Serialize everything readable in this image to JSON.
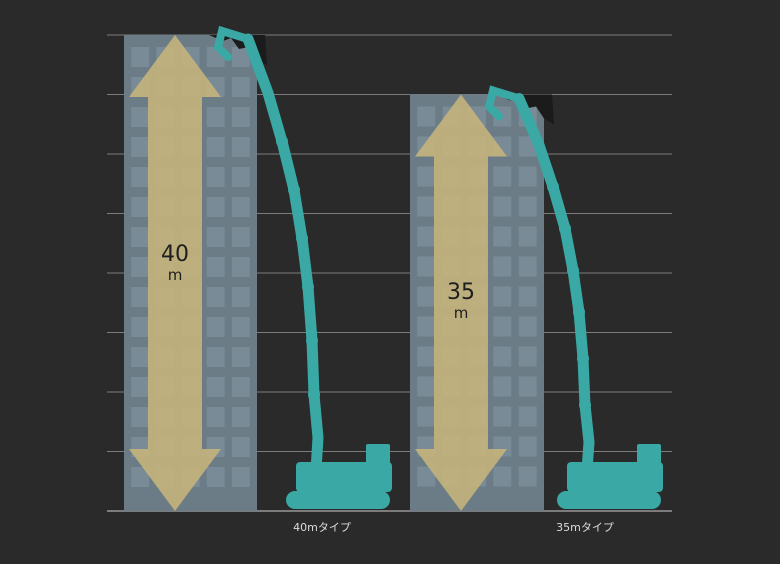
{
  "scale": {
    "gridlines": 9,
    "max_m": 40
  },
  "machines": [
    {
      "height_m": 40,
      "height_value": "40",
      "height_unit": "m",
      "caption": "40mタイプ"
    },
    {
      "height_m": 35,
      "height_value": "35",
      "height_unit": "m",
      "caption": "35mタイプ"
    }
  ],
  "colors": {
    "background": "#2a2a2a",
    "building": "#6b7c87",
    "window": "#8497a3",
    "arrow": "#c9b67a",
    "machine": "#3aa8a4",
    "gridline": "#bdbdbd"
  }
}
